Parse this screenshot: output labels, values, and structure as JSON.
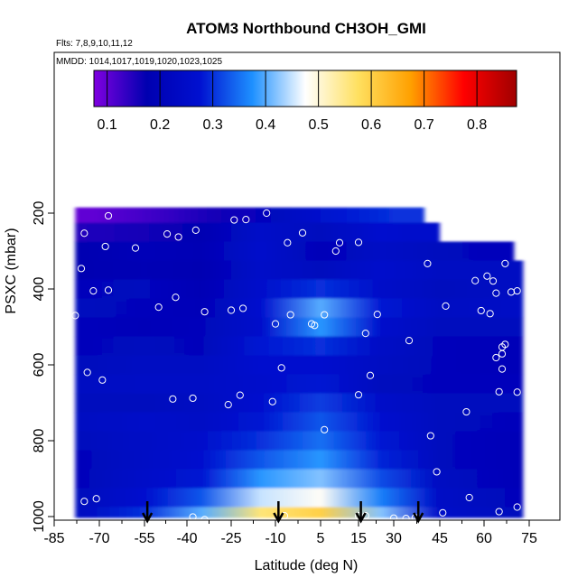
{
  "chart_data": {
    "type": "heatmap",
    "title": "ATOM3 Northbound CH3OH_GMI",
    "notes": [
      "Flts: 7,8,9,10,11,12",
      "MMDD: 1014,1017,1019,1020,1023,1025"
    ],
    "xlabel": "Latitude (deg N)",
    "ylabel": "PSXC (mbar)",
    "x_ticks": [
      -85,
      -70,
      -55,
      -40,
      -25,
      -10,
      5,
      15,
      30,
      45,
      60,
      75
    ],
    "y_ticks": [
      200,
      400,
      600,
      800,
      1000
    ],
    "y_reversed": true,
    "xlim": [
      -85,
      85
    ],
    "ylim": [
      1000,
      0
    ],
    "colorbar": {
      "ticks": [
        0.1,
        0.2,
        0.3,
        0.4,
        0.5,
        0.6,
        0.7,
        0.8
      ],
      "range": [
        0.075,
        0.875
      ],
      "colors": [
        "#8000e0",
        "#0000b0",
        "#0010d0",
        "#1e90ff",
        "#ffffff",
        "#ffe060",
        "#ffa000",
        "#ff0000",
        "#a00000"
      ]
    },
    "arrows_lat": [
      -54,
      -9,
      16,
      38
    ],
    "rows": [
      {
        "p": 200,
        "lat": [
          -72,
          -50,
          -30,
          -10,
          10,
          30
        ],
        "v": [
          0.1,
          0.13,
          0.16,
          0.22,
          0.28,
          0.3
        ]
      },
      {
        "p": 250,
        "lat": [
          -75,
          -55,
          -35,
          -15,
          5,
          25,
          35
        ],
        "v": [
          0.15,
          0.16,
          0.18,
          0.25,
          0.22,
          0.27,
          0.26
        ]
      },
      {
        "p": 300,
        "lat": [
          -75,
          -55,
          -35,
          -15,
          5,
          25,
          45,
          60
        ],
        "v": [
          0.17,
          0.2,
          0.19,
          0.26,
          0.2,
          0.24,
          0.22,
          0.21
        ]
      },
      {
        "p": 350,
        "lat": [
          -75,
          -55,
          -35,
          -15,
          5,
          25,
          45,
          65
        ],
        "v": [
          0.18,
          0.19,
          0.18,
          0.25,
          0.22,
          0.26,
          0.23,
          0.23
        ]
      },
      {
        "p": 400,
        "lat": [
          -75,
          -55,
          -35,
          -15,
          5,
          25,
          45,
          70
        ],
        "v": [
          0.21,
          0.22,
          0.19,
          0.26,
          0.3,
          0.25,
          0.22,
          0.23
        ]
      },
      {
        "p": 450,
        "lat": [
          -75,
          -55,
          -35,
          -15,
          5,
          25,
          45,
          70
        ],
        "v": [
          0.22,
          0.21,
          0.2,
          0.27,
          0.4,
          0.28,
          0.23,
          0.24
        ]
      },
      {
        "p": 500,
        "lat": [
          -75,
          -55,
          -35,
          -15,
          5,
          25,
          45,
          70
        ],
        "v": [
          0.21,
          0.2,
          0.21,
          0.26,
          0.38,
          0.26,
          0.22,
          0.22
        ]
      },
      {
        "p": 550,
        "lat": [
          -75,
          -55,
          -35,
          -15,
          5,
          25,
          45,
          70
        ],
        "v": [
          0.21,
          0.22,
          0.21,
          0.28,
          0.3,
          0.24,
          0.21,
          0.2
        ]
      },
      {
        "p": 600,
        "lat": [
          -75,
          -55,
          -35,
          -15,
          5,
          25,
          45,
          70
        ],
        "v": [
          0.22,
          0.23,
          0.23,
          0.27,
          0.27,
          0.23,
          0.21,
          0.2
        ]
      },
      {
        "p": 650,
        "lat": [
          -75,
          -55,
          -35,
          -15,
          5,
          25,
          45,
          70
        ],
        "v": [
          0.23,
          0.24,
          0.24,
          0.26,
          0.28,
          0.22,
          0.21,
          0.21
        ]
      },
      {
        "p": 700,
        "lat": [
          -75,
          -55,
          -35,
          -15,
          5,
          25,
          45,
          70
        ],
        "v": [
          0.22,
          0.22,
          0.23,
          0.27,
          0.31,
          0.25,
          0.22,
          0.22
        ]
      },
      {
        "p": 750,
        "lat": [
          -75,
          -55,
          -35,
          -15,
          5,
          25,
          45,
          70
        ],
        "v": [
          0.23,
          0.25,
          0.24,
          0.28,
          0.33,
          0.27,
          0.22,
          0.21
        ]
      },
      {
        "p": 800,
        "lat": [
          -75,
          -55,
          -35,
          -15,
          5,
          25,
          45,
          70
        ],
        "v": [
          0.22,
          0.24,
          0.26,
          0.3,
          0.35,
          0.28,
          0.22,
          0.2
        ]
      },
      {
        "p": 850,
        "lat": [
          -75,
          -55,
          -35,
          -15,
          5,
          25,
          45,
          70
        ],
        "v": [
          0.21,
          0.24,
          0.27,
          0.33,
          0.38,
          0.29,
          0.22,
          0.2
        ]
      },
      {
        "p": 900,
        "lat": [
          -75,
          -55,
          -35,
          -15,
          5,
          25,
          45,
          70
        ],
        "v": [
          0.21,
          0.25,
          0.28,
          0.38,
          0.42,
          0.32,
          0.23,
          0.2
        ]
      },
      {
        "p": 950,
        "lat": [
          -75,
          -55,
          -35,
          -15,
          5,
          25,
          45,
          70
        ],
        "v": [
          0.22,
          0.27,
          0.33,
          0.45,
          0.48,
          0.36,
          0.24,
          0.21
        ]
      },
      {
        "p": 1000,
        "lat": [
          -75,
          -55,
          -35,
          -15,
          5,
          25,
          45,
          70
        ],
        "v": [
          0.23,
          0.3,
          0.4,
          0.56,
          0.6,
          0.42,
          0.25,
          0.22
        ]
      }
    ],
    "samples": [
      [
        -67,
        207
      ],
      [
        -47,
        255
      ],
      [
        -43,
        263
      ],
      [
        -58,
        292
      ],
      [
        -37,
        245
      ],
      [
        -24,
        218
      ],
      [
        -20,
        217
      ],
      [
        -13,
        200
      ],
      [
        -75,
        253
      ],
      [
        -68,
        288
      ],
      [
        -76,
        346
      ],
      [
        -72,
        405
      ],
      [
        -67,
        403
      ],
      [
        -50,
        448
      ],
      [
        -44,
        422
      ],
      [
        -34,
        460
      ],
      [
        -25,
        456
      ],
      [
        -21,
        451
      ],
      [
        -78,
        470
      ],
      [
        -74,
        620
      ],
      [
        -69,
        640
      ],
      [
        -45,
        690
      ],
      [
        -38,
        688
      ],
      [
        -26,
        705
      ],
      [
        -22,
        680
      ],
      [
        -10,
        492
      ],
      [
        -5,
        468
      ],
      [
        -8,
        608
      ],
      [
        -11,
        697
      ],
      [
        2,
        492
      ],
      [
        3,
        496
      ],
      [
        -6,
        278
      ],
      [
        -1,
        252
      ],
      [
        9,
        300
      ],
      [
        10,
        278
      ],
      [
        15,
        277
      ],
      [
        6,
        468
      ],
      [
        18,
        517
      ],
      [
        20,
        628
      ],
      [
        23,
        467
      ],
      [
        35,
        536
      ],
      [
        41,
        333
      ],
      [
        47,
        445
      ],
      [
        42,
        787
      ],
      [
        44,
        882
      ],
      [
        57,
        378
      ],
      [
        63,
        379
      ],
      [
        61,
        366
      ],
      [
        64,
        411
      ],
      [
        69,
        408
      ],
      [
        67,
        333
      ],
      [
        59,
        457
      ],
      [
        62,
        465
      ],
      [
        64,
        581
      ],
      [
        66,
        553
      ],
      [
        67,
        546
      ],
      [
        66,
        571
      ],
      [
        66,
        611
      ],
      [
        65,
        671
      ],
      [
        71,
        405
      ],
      [
        71,
        672
      ],
      [
        54,
        724
      ],
      [
        55,
        950
      ],
      [
        65,
        987
      ],
      [
        71,
        975
      ],
      [
        -75,
        960
      ],
      [
        -71,
        953
      ],
      [
        -38,
        1001
      ],
      [
        -34,
        1008
      ],
      [
        -7,
        998
      ],
      [
        15,
        998
      ],
      [
        18,
        998
      ],
      [
        30,
        1004
      ],
      [
        34,
        1005
      ],
      [
        37,
        1003
      ],
      [
        46,
        990
      ],
      [
        6,
        771
      ],
      [
        15,
        679
      ]
    ]
  }
}
